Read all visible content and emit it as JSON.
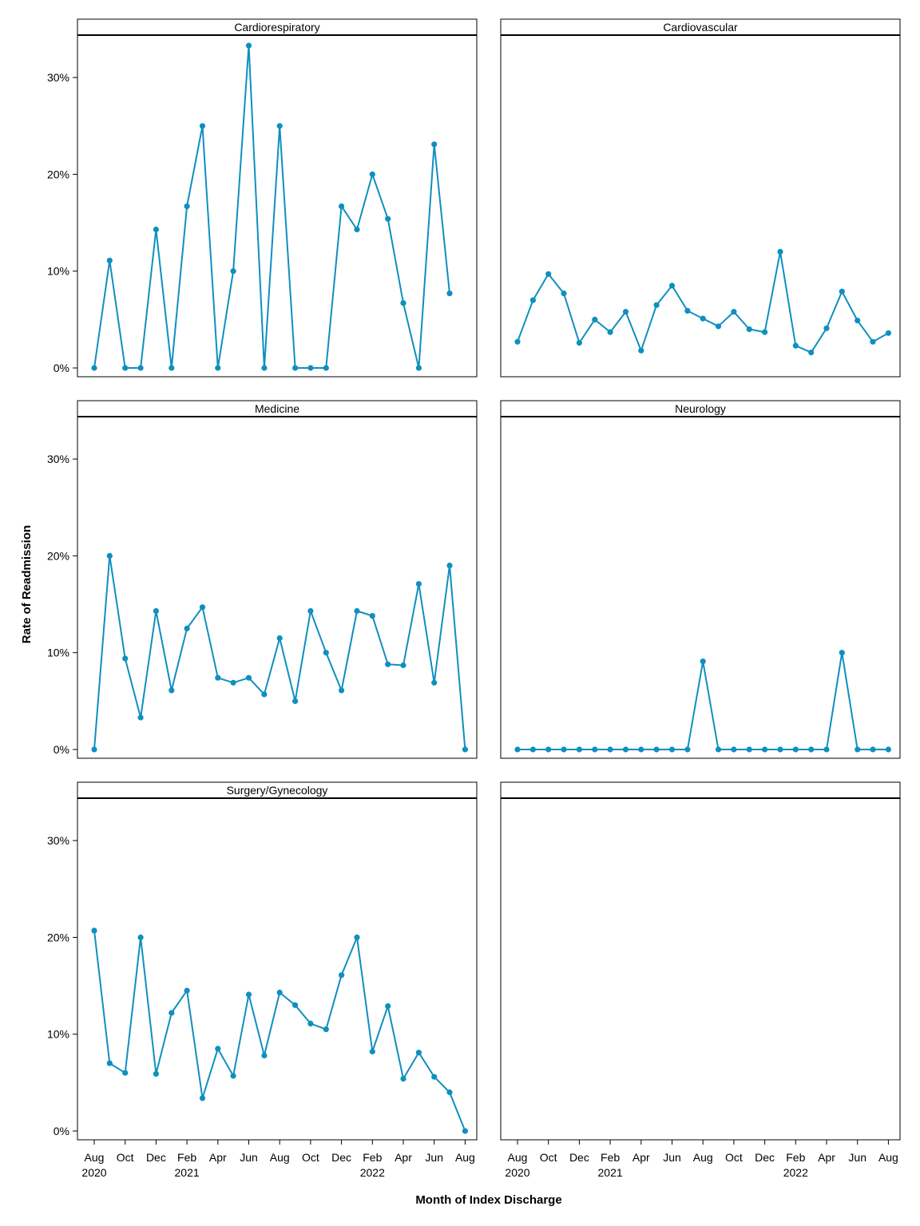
{
  "chart_data": {
    "type": "line",
    "layout": "faceted 3x2 grid, shared axes",
    "xlabel": "Month of Index Discharge",
    "ylabel": "Rate of Readmission",
    "ylim": [
      0,
      35
    ],
    "y_ticks": [
      0,
      10,
      20,
      30
    ],
    "y_tick_labels": [
      "0%",
      "10%",
      "20%",
      "30%"
    ],
    "x_ticks": [
      {
        "index": 0,
        "label": "Aug",
        "year": "2020"
      },
      {
        "index": 2,
        "label": "Oct",
        "year": ""
      },
      {
        "index": 4,
        "label": "Dec",
        "year": ""
      },
      {
        "index": 6,
        "label": "Feb",
        "year": "2021"
      },
      {
        "index": 8,
        "label": "Apr",
        "year": ""
      },
      {
        "index": 10,
        "label": "Jun",
        "year": ""
      },
      {
        "index": 12,
        "label": "Aug",
        "year": ""
      },
      {
        "index": 14,
        "label": "Oct",
        "year": ""
      },
      {
        "index": 16,
        "label": "Dec",
        "year": ""
      },
      {
        "index": 18,
        "label": "Feb",
        "year": "2022"
      },
      {
        "index": 20,
        "label": "Apr",
        "year": ""
      },
      {
        "index": 22,
        "label": "Jun",
        "year": ""
      },
      {
        "index": 24,
        "label": "Aug",
        "year": ""
      }
    ],
    "months": [
      "2020-08",
      "2020-09",
      "2020-10",
      "2020-11",
      "2020-12",
      "2021-01",
      "2021-02",
      "2021-03",
      "2021-04",
      "2021-05",
      "2021-06",
      "2021-07",
      "2021-08",
      "2021-09",
      "2021-10",
      "2021-11",
      "2021-12",
      "2022-01",
      "2022-02",
      "2022-03",
      "2022-04",
      "2022-05",
      "2022-06",
      "2022-07",
      "2022-08"
    ],
    "color": "#0f8fbf",
    "grid": false,
    "panels": [
      {
        "name": "Cardiorespiratory",
        "values": [
          0,
          11.1,
          0,
          0,
          14.3,
          0,
          16.7,
          25.0,
          0,
          10.0,
          33.3,
          0,
          25.0,
          0,
          0,
          0,
          16.7,
          14.3,
          20.0,
          15.4,
          6.7,
          0,
          23.1,
          7.7,
          null
        ]
      },
      {
        "name": "Cardiovascular",
        "values": [
          2.7,
          7.0,
          9.7,
          7.7,
          2.6,
          5.0,
          3.7,
          5.8,
          1.8,
          6.5,
          8.5,
          5.9,
          5.1,
          4.3,
          5.8,
          4.0,
          3.7,
          12.0,
          2.3,
          1.6,
          4.1,
          7.9,
          4.9,
          2.7,
          3.6
        ]
      },
      {
        "name": "Medicine",
        "values": [
          0,
          20.0,
          9.4,
          3.3,
          14.3,
          6.1,
          12.5,
          14.7,
          7.4,
          6.9,
          7.4,
          5.7,
          11.5,
          5.0,
          14.3,
          10.0,
          6.1,
          14.3,
          13.8,
          8.8,
          8.7,
          17.1,
          6.9,
          19.0,
          0
        ]
      },
      {
        "name": "Neurology",
        "values": [
          0,
          0,
          0,
          0,
          0,
          0,
          0,
          0,
          0,
          0,
          0,
          0,
          9.1,
          0,
          0,
          0,
          0,
          0,
          0,
          0,
          0,
          10.0,
          0,
          0,
          0
        ]
      },
      {
        "name": "Surgery/Gynecology",
        "values": [
          20.7,
          7.0,
          6.0,
          20.0,
          5.9,
          12.2,
          14.5,
          3.4,
          8.5,
          5.7,
          14.1,
          7.8,
          14.3,
          13.0,
          11.1,
          10.5,
          16.1,
          20.0,
          8.2,
          12.9,
          5.4,
          8.1,
          5.6,
          4.0,
          0
        ]
      },
      {
        "name": "",
        "values": []
      }
    ]
  }
}
